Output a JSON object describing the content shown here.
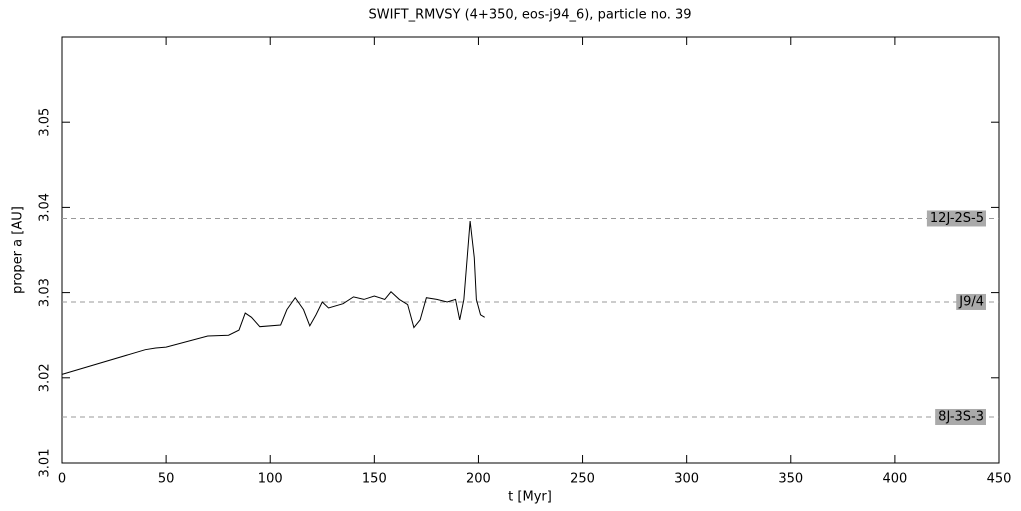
{
  "chart_data": {
    "type": "line",
    "title": "SWIFT_RMVSY (4+350, eos-j94_6), particle no. 39",
    "x_label": "t [Myr]",
    "y_label": "proper a [AU]",
    "xlim": [
      0,
      450
    ],
    "xticks": [
      0,
      50,
      100,
      150,
      200,
      250,
      300,
      350,
      400,
      450
    ],
    "ylim": [
      3.01,
      3.06
    ],
    "yticks": [
      3.01,
      3.02,
      3.03,
      3.04,
      3.05
    ],
    "series": [
      {
        "color": "#000000",
        "x": [
          0,
          40,
          45,
          50,
          70,
          80,
          85,
          88,
          91,
          95,
          105,
          108,
          112,
          116,
          119,
          122,
          125,
          128,
          135,
          140,
          145,
          150,
          155,
          158,
          162,
          166,
          169,
          172,
          175,
          180,
          185,
          189,
          191,
          193,
          196,
          198,
          199,
          201,
          203
        ],
        "values": [
          3.0204,
          3.0233,
          3.0235,
          3.0236,
          3.0249,
          3.025,
          3.0256,
          3.0276,
          3.0271,
          3.026,
          3.0262,
          3.028,
          3.0294,
          3.028,
          3.0261,
          3.0274,
          3.0289,
          3.0282,
          3.0287,
          3.0295,
          3.0292,
          3.0296,
          3.0292,
          3.0301,
          3.0292,
          3.0286,
          3.0259,
          3.0268,
          3.0294,
          3.0292,
          3.0289,
          3.0292,
          3.0268,
          3.0292,
          3.0384,
          3.0341,
          3.0292,
          3.0274,
          3.0271
        ]
      }
    ],
    "resonances": [
      {
        "label": "12J-2S-5",
        "value": 3.0387
      },
      {
        "label": "J9/4",
        "value": 3.0289
      },
      {
        "label": "8J-3S-3",
        "value": 3.0154
      }
    ]
  }
}
